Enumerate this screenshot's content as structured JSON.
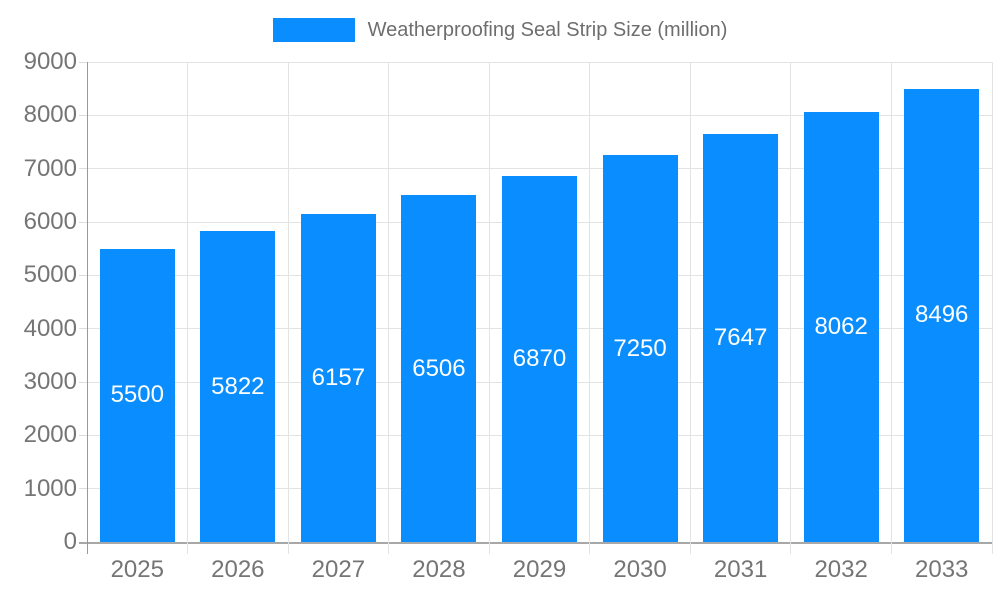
{
  "chart_data": {
    "type": "bar",
    "title": "Weatherproofing Seal Strip Size (million)",
    "series_name": "Weatherproofing Seal Strip Size (million)",
    "categories": [
      "2025",
      "2026",
      "2027",
      "2028",
      "2029",
      "2030",
      "2031",
      "2032",
      "2033"
    ],
    "values": [
      5500,
      5822,
      6157,
      6506,
      6870,
      7250,
      7647,
      8062,
      8496
    ],
    "xlabel": "",
    "ylabel": "",
    "ylim": [
      0,
      9000
    ],
    "ytick_interval": 1000,
    "ytick_labels": [
      "0",
      "1000",
      "2000",
      "3000",
      "4000",
      "5000",
      "6000",
      "7000",
      "8000",
      "9000"
    ],
    "grid": true,
    "legend_position": "top-center",
    "value_label_position": "inside-middle",
    "colors": {
      "bar": "#0a8eff",
      "title_text": "#6e6e6e",
      "axis_label": "#757575",
      "gridline": "#e3e3e3",
      "tick": "#dcdcdc",
      "axis_line_x": "#a8a8a8",
      "axis_line_y": "#999999",
      "value_label": "#ffffff"
    }
  }
}
